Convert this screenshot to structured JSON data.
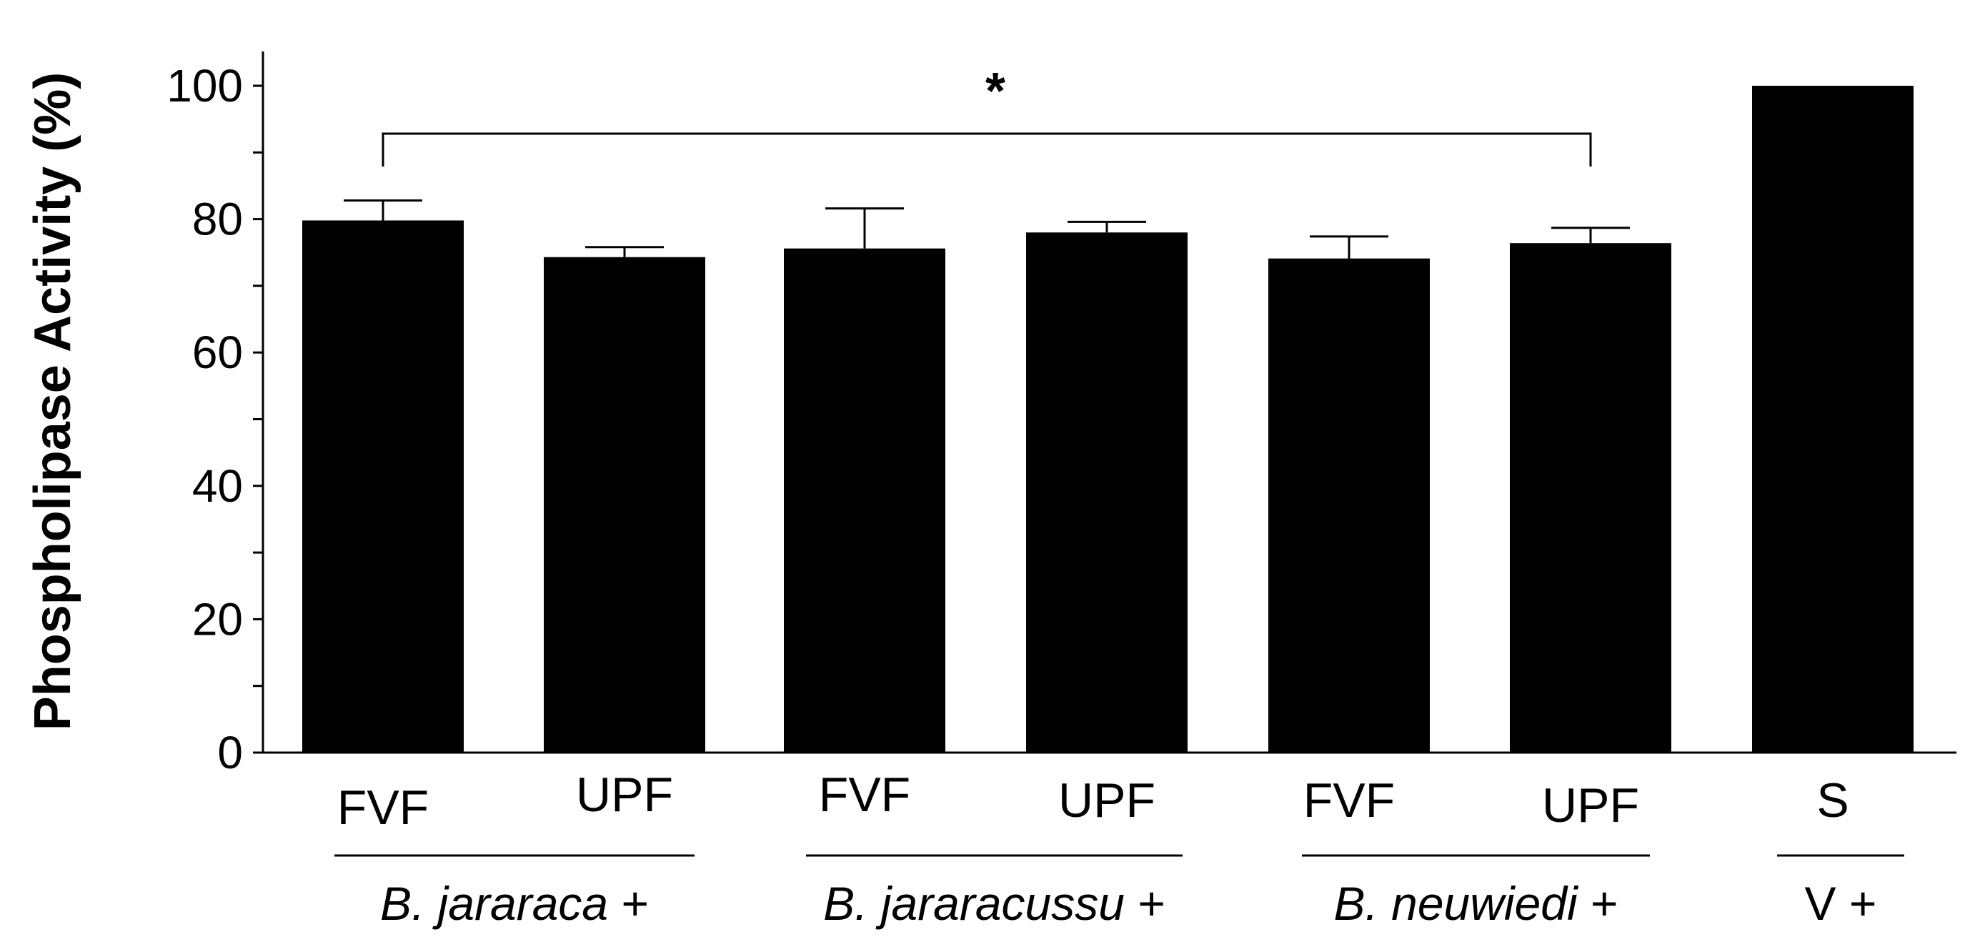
{
  "chart_data": {
    "type": "bar",
    "title": "",
    "xlabel": "",
    "ylabel": "Phospholipase Activity (%)",
    "ylim": [
      0,
      105
    ],
    "yticks": [
      0,
      20,
      40,
      60,
      80,
      100
    ],
    "grid": false,
    "categories": [
      "FVF",
      "UPF",
      "FVF",
      "UPF",
      "FVF",
      "UPF",
      "S"
    ],
    "values": [
      79.8,
      74.3,
      75.6,
      78.0,
      74.1,
      76.4,
      100
    ],
    "errors": [
      3.0,
      1.5,
      6.0,
      1.6,
      3.3,
      2.3,
      0
    ],
    "groups": [
      {
        "label_italic": "B. jararaca",
        "label_suffix": " +",
        "members": [
          0,
          1
        ]
      },
      {
        "label_italic": "B. jararacussu",
        "label_suffix": " +",
        "members": [
          2,
          3
        ]
      },
      {
        "label_italic": "B. neuwiedi",
        "label_suffix": " +",
        "members": [
          4,
          5
        ]
      },
      {
        "label_italic": "",
        "label_suffix": "V +",
        "members": [
          6
        ]
      }
    ],
    "significance": {
      "from": 0,
      "to": 5,
      "label": "*"
    },
    "colors": {
      "bars": "#000000",
      "axes": "#000000"
    }
  }
}
